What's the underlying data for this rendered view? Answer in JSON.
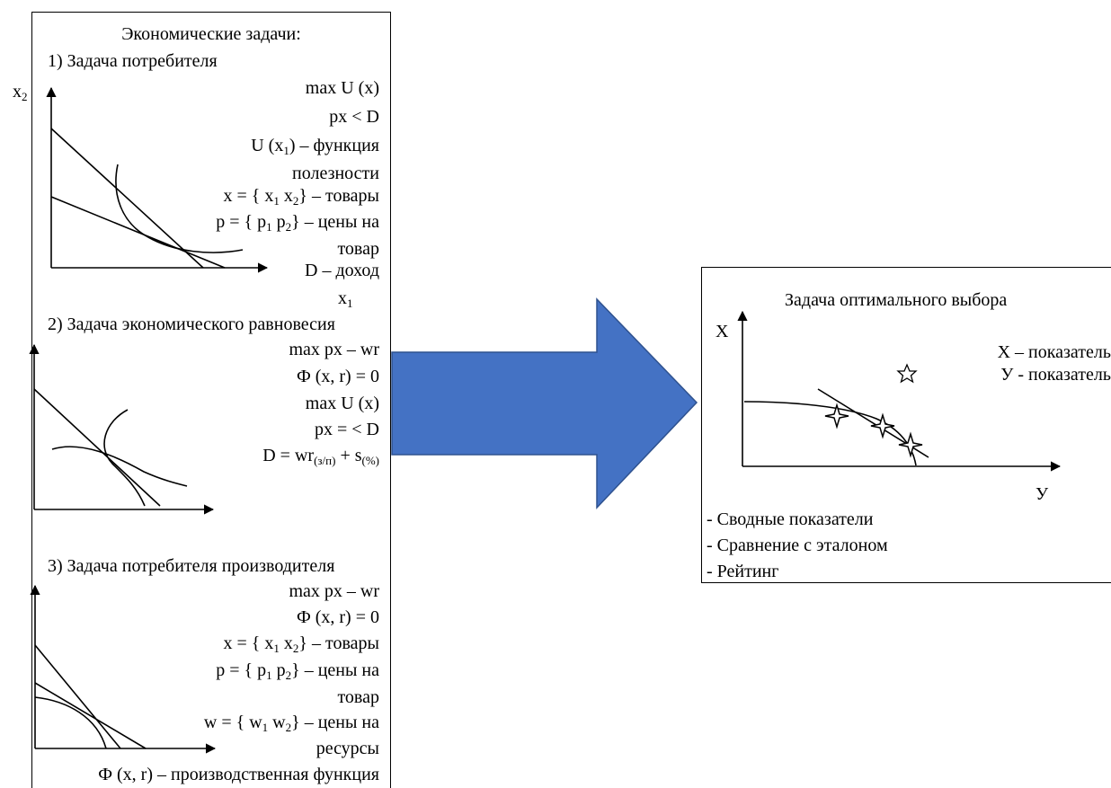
{
  "left": {
    "title": "Экономические задачи:",
    "task1": {
      "heading": "1) Задача потребителя",
      "y_axis_label": "x",
      "y_axis_sub": "2",
      "x_axis_label": "x",
      "x_axis_sub": "1",
      "lines": [
        [
          "max U (x)"
        ],
        [
          "px < D"
        ],
        [
          "U (x",
          "1",
          ") – функция"
        ],
        [
          "полезности"
        ],
        [
          "x = { x",
          "1",
          " x",
          "2",
          "} – товары"
        ],
        [
          "p = { p",
          "1",
          " p",
          "2",
          "} – цены на"
        ],
        [
          "товар"
        ],
        [
          "D – доход"
        ]
      ]
    },
    "task2": {
      "heading": "2) Задача экономического равновесия",
      "lines": [
        [
          "max px – wr"
        ],
        [
          "Ф (x, r) = 0"
        ],
        [
          "max U (x)"
        ],
        [
          "px = < D"
        ],
        [
          "D = wr",
          "(з/п)",
          " + s",
          "(%)"
        ]
      ]
    },
    "task3": {
      "heading": "3) Задача потребителя производителя",
      "lines": [
        [
          "max px – wr"
        ],
        [
          "Ф (x, r) = 0"
        ],
        [
          "x = { x",
          "1",
          " x",
          "2",
          "} – товары"
        ],
        [
          "p = { p",
          "1",
          " p",
          "2",
          "} – цены на"
        ],
        [
          "товар"
        ],
        [
          "w = { w",
          "1",
          " w",
          "2",
          "} – цены на"
        ],
        [
          "ресурсы"
        ],
        [
          "Ф (x, r) – производственная функция"
        ]
      ]
    }
  },
  "right": {
    "title": "Задача оптимального выбора",
    "y_axis_label": "X",
    "x_axis_label": "У",
    "legend": [
      "X – показатель",
      "У - показатель"
    ],
    "bullets": [
      "- Сводные показатели",
      "- Сравнение с эталоном",
      "- Рейтинг"
    ]
  },
  "colors": {
    "arrow": "#4472C4",
    "arrow_border": "#2F528F",
    "line": "#000000"
  }
}
